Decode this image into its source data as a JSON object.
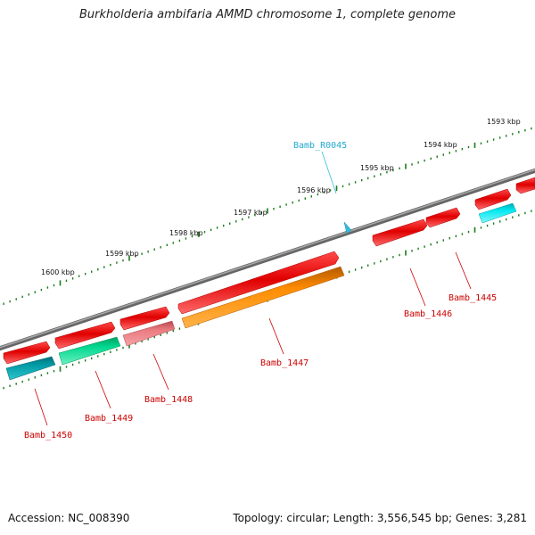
{
  "title": "Burkholderia ambifaria AMMD chromosome 1, complete genome",
  "footer": {
    "accession": "Accession: NC_008390",
    "summary": "Topology: circular; Length: 3,556,545 bp; Genes: 3,281"
  },
  "scale_labels": [
    "1593 kbp",
    "1594 kbp",
    "1595 kbp",
    "1596 kbp",
    "1597 kbp",
    "1598 kbp",
    "1599 kbp",
    "1600 kbp"
  ],
  "genes": [
    {
      "name": "Bamb_R0045",
      "kind": "rna",
      "color": "#33bbdd"
    },
    {
      "name": "Bamb_1445",
      "kind": "cds",
      "color": "#cc0000"
    },
    {
      "name": "Bamb_1446",
      "kind": "cds",
      "color": "#cc0000"
    },
    {
      "name": "Bamb_1447",
      "kind": "cds",
      "color": "#cc0000"
    },
    {
      "name": "Bamb_1448",
      "kind": "cds",
      "color": "#cc0000"
    },
    {
      "name": "Bamb_1449",
      "kind": "cds",
      "color": "#cc0000"
    },
    {
      "name": "Bamb_1450",
      "kind": "cds",
      "color": "#cc0000"
    }
  ],
  "colors": {
    "backbone": "#7a7a7a",
    "tick": "#1a7a1a",
    "forward_gene": "#e00000",
    "cyan": "#00d0d8",
    "teal": "#009aa5",
    "green": "#00d890",
    "pink": "#ea7a80",
    "orange": "#ff8c00"
  }
}
